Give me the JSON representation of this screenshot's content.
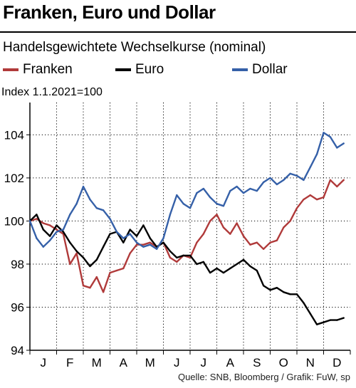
{
  "chart_data": {
    "type": "line",
    "title": "Franken, Euro und Dollar",
    "subtitle": "Handelsgewichtete Wechselkurse (nominal)",
    "ylabel": "Index 1.1.2021=100",
    "ylim": [
      94,
      105.5
    ],
    "yticks": [
      94,
      96,
      98,
      100,
      102,
      104
    ],
    "xlim": [
      0,
      12
    ],
    "months": [
      "J",
      "F",
      "M",
      "A",
      "M",
      "J",
      "J",
      "A",
      "S",
      "O",
      "N",
      "D"
    ],
    "grid": true,
    "legend_position": "top",
    "source": "Quelle: SNB, Bloomberg / Grafik: FuW, sp",
    "x": [
      0,
      0.25,
      0.5,
      0.75,
      1,
      1.25,
      1.5,
      1.75,
      2,
      2.25,
      2.5,
      2.75,
      3,
      3.25,
      3.5,
      3.75,
      4,
      4.25,
      4.5,
      4.75,
      5,
      5.25,
      5.5,
      5.75,
      6,
      6.25,
      6.5,
      6.75,
      7,
      7.25,
      7.5,
      7.75,
      8,
      8.25,
      8.5,
      8.75,
      9,
      9.25,
      9.5,
      9.75,
      10,
      10.25,
      10.5,
      10.75,
      11,
      11.25,
      11.5,
      11.75
    ],
    "series": [
      {
        "name": "Franken",
        "color": "#b03a3a",
        "values": [
          100.0,
          100.1,
          99.9,
          99.8,
          99.6,
          99.4,
          98.0,
          98.5,
          97.0,
          96.9,
          97.4,
          96.7,
          97.6,
          97.7,
          97.8,
          98.5,
          98.9,
          98.9,
          99.0,
          98.8,
          99.0,
          98.3,
          98.1,
          98.4,
          98.3,
          99.0,
          99.4,
          100.0,
          100.3,
          99.7,
          99.4,
          99.9,
          99.3,
          98.9,
          99.0,
          98.7,
          99.0,
          99.1,
          99.7,
          100.0,
          100.6,
          101.0,
          101.2,
          101.0,
          101.1,
          101.9,
          101.6,
          101.9
        ]
      },
      {
        "name": "Euro",
        "color": "#000000",
        "values": [
          100.0,
          100.3,
          99.6,
          99.3,
          99.8,
          99.5,
          99.0,
          98.6,
          98.3,
          97.9,
          98.2,
          98.8,
          99.4,
          99.5,
          99.0,
          99.6,
          99.3,
          99.8,
          99.2,
          98.8,
          99.0,
          98.6,
          98.3,
          98.4,
          98.4,
          98.0,
          98.1,
          97.6,
          97.8,
          97.6,
          97.8,
          98.0,
          98.2,
          97.9,
          97.7,
          97.0,
          96.8,
          96.9,
          96.7,
          96.6,
          96.6,
          96.2,
          95.7,
          95.2,
          95.3,
          95.4,
          95.4,
          95.5
        ]
      },
      {
        "name": "Dollar",
        "color": "#3560a8",
        "values": [
          100.0,
          99.2,
          98.8,
          99.1,
          99.5,
          99.6,
          100.3,
          100.8,
          101.6,
          101.0,
          100.6,
          100.5,
          100.1,
          99.5,
          99.2,
          99.4,
          99.0,
          98.8,
          98.9,
          98.7,
          99.2,
          100.3,
          101.2,
          100.8,
          100.6,
          101.3,
          101.5,
          101.1,
          100.8,
          100.7,
          101.4,
          101.6,
          101.3,
          101.5,
          101.4,
          101.8,
          102.0,
          101.7,
          101.9,
          102.2,
          102.1,
          101.9,
          102.5,
          103.1,
          104.1,
          103.9,
          103.4,
          103.6
        ]
      }
    ]
  }
}
